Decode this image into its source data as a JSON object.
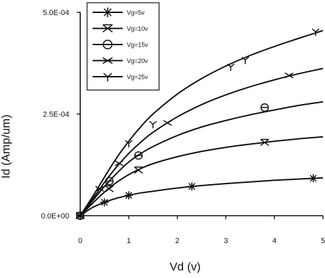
{
  "chart_data": {
    "type": "line",
    "xlabel": "Vd (v)",
    "ylabel": "Id (Amp/um)",
    "xlim": [
      0,
      5
    ],
    "ylim": [
      0,
      0.0005
    ],
    "x_ticks": [
      {
        "value": 0,
        "label": "0"
      },
      {
        "value": 1,
        "label": "1"
      },
      {
        "value": 2,
        "label": "2"
      },
      {
        "value": 3,
        "label": "3"
      },
      {
        "value": 4,
        "label": "4"
      },
      {
        "value": 5,
        "label": "5"
      }
    ],
    "y_ticks": [
      {
        "value": 0,
        "label": "0.0E+00"
      },
      {
        "value": 0.00025,
        "label": "2.5E-04"
      },
      {
        "value": 0.0005,
        "label": "5.0E-04"
      }
    ],
    "legend_position": "top-left",
    "series": [
      {
        "name": "Vg=5v",
        "marker": "asterisk",
        "curve_x": [
          0,
          0.25,
          0.5,
          0.75,
          1.0,
          1.25,
          1.5,
          2.0,
          2.5,
          3.0,
          3.5,
          4.0,
          4.5,
          5.0
        ],
        "curve_y": [
          0,
          2e-05,
          3.3e-05,
          4.3e-05,
          5e-05,
          5.6e-05,
          6e-05,
          6.8e-05,
          7.4e-05,
          7.9e-05,
          8.3e-05,
          8.7e-05,
          9e-05,
          9.3e-05
        ],
        "marker_x": [
          0,
          0.5,
          1.0,
          2.3,
          4.8
        ],
        "marker_y": [
          0,
          3.3e-05,
          5e-05,
          7.2e-05,
          9.2e-05
        ]
      },
      {
        "name": "Vg=10v",
        "marker": "x-bowtie",
        "curve_x": [
          0,
          0.25,
          0.5,
          0.75,
          1.0,
          1.25,
          1.5,
          2.0,
          2.5,
          3.0,
          3.5,
          4.0,
          4.5,
          5.0
        ],
        "curve_y": [
          0,
          3e-05,
          5.8e-05,
          8.2e-05,
          0.000101,
          0.000116,
          0.000128,
          0.000145,
          0.000158,
          0.000168,
          0.000176,
          0.000183,
          0.000189,
          0.000194
        ],
        "marker_x": [
          0,
          0.6,
          1.2,
          3.8
        ],
        "marker_y": [
          0,
          6.6e-05,
          0.000112,
          0.00018
        ]
      },
      {
        "name": "Vg=15v",
        "marker": "circle",
        "curve_x": [
          0,
          0.25,
          0.5,
          0.75,
          1.0,
          1.25,
          1.5,
          2.0,
          2.5,
          3.0,
          3.5,
          4.0,
          4.5,
          5.0
        ],
        "curve_y": [
          0,
          3.6e-05,
          7.2e-05,
          0.000104,
          0.000132,
          0.000153,
          0.00017,
          0.000197,
          0.000218,
          0.000234,
          0.000248,
          0.00026,
          0.000271,
          0.00028
        ],
        "marker_x": [
          0,
          0.6,
          1.2,
          3.8
        ],
        "marker_y": [
          0,
          8.5e-05,
          0.000148,
          0.000266
        ]
      },
      {
        "name": "Vg=20v",
        "marker": "x",
        "curve_x": [
          0,
          0.25,
          0.5,
          0.75,
          1.0,
          1.25,
          1.5,
          2.0,
          2.5,
          3.0,
          3.5,
          4.0,
          4.5,
          5.0
        ],
        "curve_y": [
          0,
          4e-05,
          8.2e-05,
          0.00012,
          0.000153,
          0.000181,
          0.000205,
          0.000243,
          0.000273,
          0.000297,
          0.000317,
          0.000334,
          0.000349,
          0.000362
        ],
        "marker_x": [
          0,
          0.4,
          0.8,
          1.8,
          4.3
        ],
        "marker_y": [
          0,
          6.6e-05,
          0.000129,
          0.000228,
          0.000345
        ]
      },
      {
        "name": "Vg=25v",
        "marker": "y",
        "curve_x": [
          0,
          0.25,
          0.5,
          0.75,
          1.0,
          1.25,
          1.5,
          2.0,
          2.5,
          3.0,
          3.5,
          4.0,
          4.5,
          5.0
        ],
        "curve_y": [
          0,
          4.6e-05,
          9.5e-05,
          0.000142,
          0.000183,
          0.000219,
          0.00025,
          0.000299,
          0.000337,
          0.000368,
          0.000394,
          0.000416,
          0.000436,
          0.000455
        ],
        "marker_x": [
          0,
          1.0,
          1.5,
          3.1,
          3.4,
          4.85
        ],
        "marker_y": [
          0,
          0.000178,
          0.000225,
          0.000366,
          0.000383,
          0.000452
        ]
      }
    ]
  }
}
